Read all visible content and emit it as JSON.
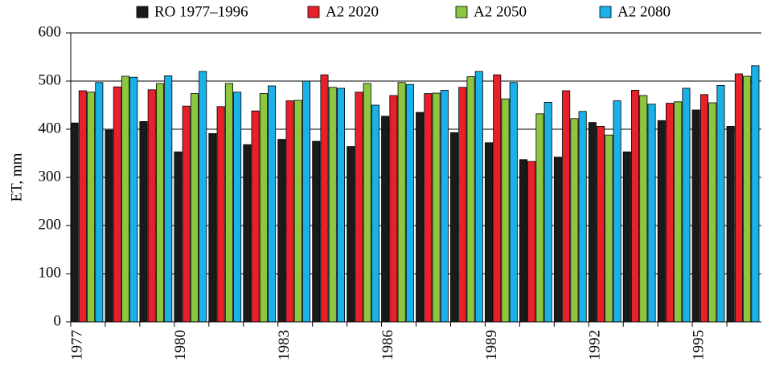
{
  "chart_data": {
    "type": "bar",
    "y_label": "ET, mm",
    "categories": [
      "1977",
      null,
      null,
      "1980",
      null,
      null,
      "1983",
      null,
      null,
      "1986",
      null,
      null,
      "1989",
      null,
      null,
      "1992",
      null,
      null,
      "1995",
      null
    ],
    "series": [
      {
        "name": "RO 1977–1996",
        "color": "#1a1a1a",
        "values": [
          413,
          398,
          416,
          353,
          391,
          368,
          379,
          375,
          364,
          427,
          435,
          393,
          372,
          337,
          342,
          414,
          353,
          418,
          440,
          406
        ]
      },
      {
        "name": "A2 2020",
        "color": "#e8202a",
        "values": [
          480,
          488,
          482,
          448,
          447,
          438,
          459,
          513,
          477,
          470,
          474,
          487,
          513,
          333,
          480,
          406,
          481,
          454,
          472,
          515
        ]
      },
      {
        "name": "A2 2050",
        "color": "#8dc63f",
        "values": [
          477,
          510,
          495,
          474,
          495,
          474,
          460,
          487,
          495,
          497,
          475,
          509,
          463,
          432,
          422,
          388,
          470,
          457,
          455,
          510
        ]
      },
      {
        "name": "A2 2080",
        "color": "#1ab0e8",
        "values": [
          497,
          508,
          511,
          520,
          477,
          490,
          500,
          485,
          450,
          493,
          481,
          520,
          497,
          456,
          437,
          459,
          452,
          485,
          491,
          532
        ]
      }
    ],
    "ylim": [
      0,
      600
    ],
    "yticks": [
      0,
      100,
      200,
      300,
      400,
      500,
      600
    ],
    "grid": true,
    "legend": "top"
  }
}
